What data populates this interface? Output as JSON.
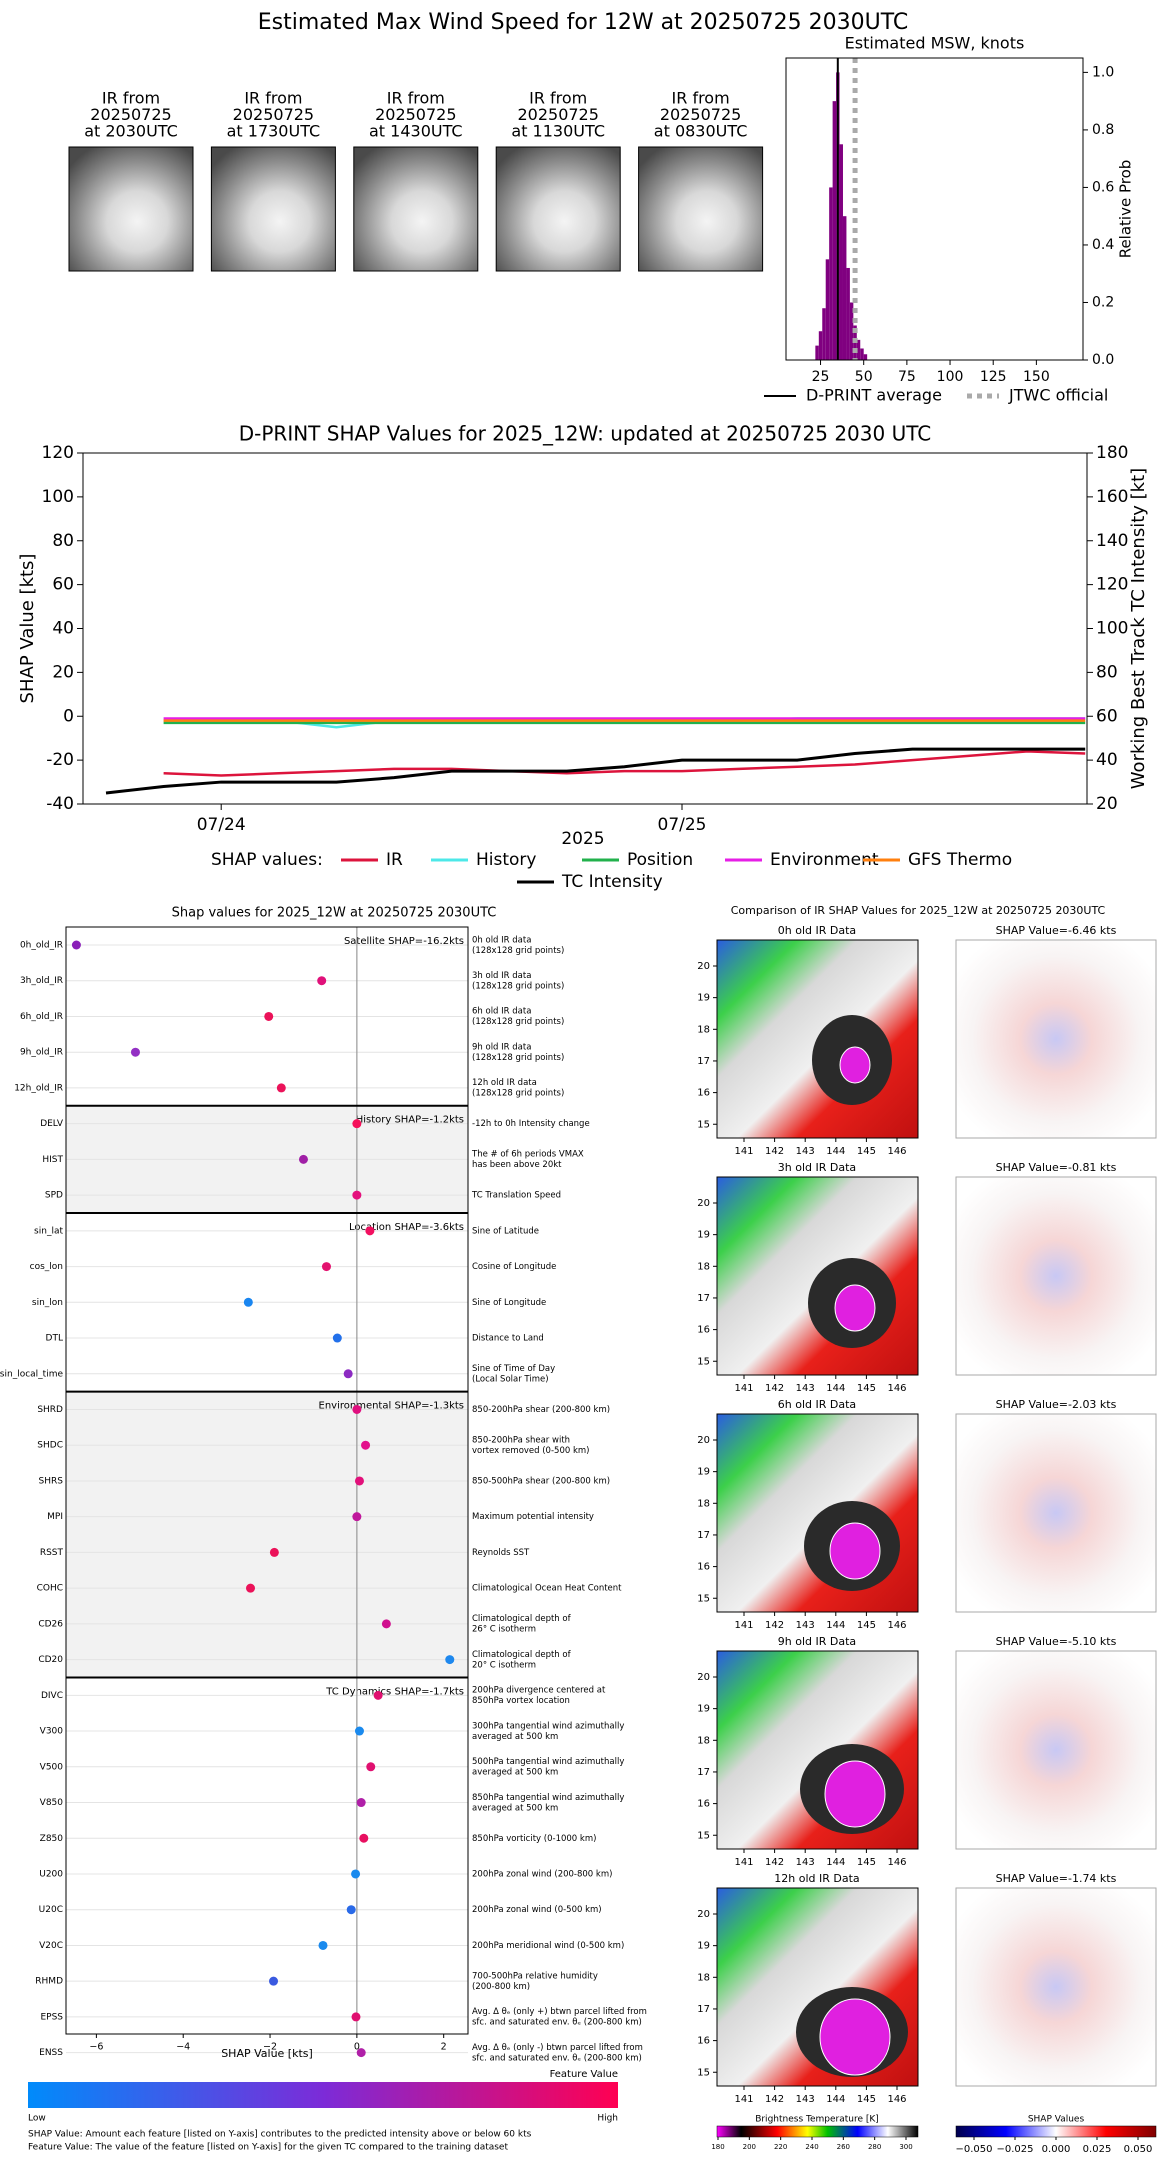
{
  "title": "Estimated Max Wind Speed for 12W at 20250725 2030UTC",
  "ir_thumbnails": [
    [
      "IR from",
      "20250725",
      "at 2030UTC"
    ],
    [
      "IR from",
      "20250725",
      "at 1730UTC"
    ],
    [
      "IR from",
      "20250725",
      "at 1430UTC"
    ],
    [
      "IR from",
      "20250725",
      "at 1130UTC"
    ],
    [
      "IR from",
      "20250725",
      "at 0830UTC"
    ]
  ],
  "chart_data": [
    {
      "type": "histogram",
      "title": "Estimated MSW, knots",
      "bins": [
        22,
        24,
        26,
        28,
        30,
        32,
        34,
        36,
        38,
        40,
        42,
        44,
        46,
        48,
        50,
        52
      ],
      "values": [
        0.05,
        0.1,
        0.18,
        0.35,
        0.6,
        0.9,
        1.0,
        0.75,
        0.5,
        0.32,
        0.2,
        0.12,
        0.07,
        0.04,
        0.02
      ],
      "color": "#800080",
      "xlim": [
        5,
        177
      ],
      "xticks": [
        25,
        50,
        75,
        100,
        125,
        150
      ],
      "ylim": [
        0,
        1.05
      ],
      "yticks": [
        {
          "value": 0,
          "label": "0.0"
        },
        {
          "value": 0.2,
          "label": "0.2"
        },
        {
          "value": 0.4,
          "label": "0.4"
        },
        {
          "value": 0.6,
          "label": "0.6"
        },
        {
          "value": 0.8,
          "label": "0.8"
        },
        {
          "value": 1,
          "label": "1.0"
        }
      ],
      "ylabel": "Relative Prob",
      "reference_lines": [
        {
          "name": "D-PRINT average",
          "value": 35,
          "color": "#000000",
          "style": "solid"
        },
        {
          "name": "JTWC official",
          "value": 45,
          "color": "#aaaaaa",
          "style": "dotted"
        }
      ]
    },
    {
      "type": "line",
      "title": "D-PRINT SHAP Values for 2025_12W: updated at 20250725 2030 UTC",
      "xlabel": "2025",
      "ylabel": "SHAP Value [kts]",
      "y2label": "Working Best Track TC Intensity [kt]",
      "categories": [
        null,
        null,
        "07/24",
        null,
        null,
        null,
        null,
        null,
        null,
        null,
        "07/25",
        null,
        null,
        null,
        null,
        null,
        null,
        null
      ],
      "ylim": [
        -40,
        120
      ],
      "yticks": [
        -40,
        -20,
        0,
        20,
        40,
        60,
        80,
        100,
        120
      ],
      "y2lim": [
        20,
        180
      ],
      "y2ticks": [
        20,
        40,
        60,
        80,
        100,
        120,
        140,
        160,
        180
      ],
      "legend_title": "SHAP values:",
      "series": [
        {
          "name": "IR",
          "color": "#dc143c",
          "values": [
            null,
            -26,
            -27,
            -26,
            -25,
            -24,
            -24,
            -25,
            -26,
            -25,
            -25,
            -24,
            -23,
            -22,
            -20,
            -18,
            -16,
            -17
          ]
        },
        {
          "name": "History",
          "color": "#4de8e8",
          "values": [
            null,
            -2,
            -2,
            -2,
            -5,
            -2,
            -2,
            -2,
            -2,
            -2,
            -2,
            -2,
            -1,
            -1,
            -1,
            -1,
            -1,
            -1
          ]
        },
        {
          "name": "Position",
          "color": "#22b14c",
          "values": [
            null,
            -3,
            -3,
            -3,
            -3,
            -3,
            -3,
            -3,
            -3,
            -3,
            -3,
            -3,
            -3,
            -3,
            -3,
            -3,
            -3,
            -3
          ]
        },
        {
          "name": "Environment",
          "color": "#e61ee6",
          "values": [
            null,
            -1,
            -1,
            -1,
            -1,
            -1,
            -1,
            -1,
            -1,
            -1,
            -1,
            -1,
            -1,
            -1,
            -1,
            -1,
            -1,
            -1
          ]
        },
        {
          "name": "GFS Thermo",
          "color": "#ff7f0e",
          "values": [
            null,
            -2,
            -2,
            -2,
            -2,
            -2,
            -2,
            -2,
            -2,
            -2,
            -2,
            -2,
            -2,
            -2,
            -2,
            -2,
            -2,
            -2
          ]
        },
        {
          "name": "TC Intensity",
          "color": "#000000",
          "axis": "y2",
          "values": [
            25,
            28,
            30,
            30,
            30,
            32,
            35,
            35,
            35,
            37,
            40,
            40,
            40,
            43,
            45,
            45,
            45,
            45
          ]
        }
      ]
    },
    {
      "type": "dot",
      "title": "Shap values for 2025_12W at 20250725 2030UTC",
      "xlabel": "SHAP Value [kts]",
      "xlim": [
        -6.7,
        2.56
      ],
      "xticks": [
        {
          "value": -6,
          "label": "−6"
        },
        {
          "value": -4,
          "label": "−4"
        },
        {
          "value": -2,
          "label": "−2"
        },
        0,
        2
      ],
      "groups": [
        {
          "label": "Satellite SHAP=-16.2kts",
          "features": [
            {
              "name": "0h_old_IR",
              "value": -6.46,
              "color": "#8a1fb8",
              "description": [
                "0h old IR data",
                "(128x128 grid points)"
              ]
            },
            {
              "name": "3h_old_IR",
              "value": -0.81,
              "color": "#e0117a",
              "description": [
                "3h old IR data",
                "(128x128 grid points)"
              ]
            },
            {
              "name": "6h_old_IR",
              "value": -2.03,
              "color": "#eb1259",
              "description": [
                "6h old IR data",
                "(128x128 grid points)"
              ]
            },
            {
              "name": "9h_old_IR",
              "value": -5.1,
              "color": "#9330c4",
              "description": [
                "9h old IR data",
                "(128x128 grid points)"
              ]
            },
            {
              "name": "12h_old_IR",
              "value": -1.74,
              "color": "#eb1259",
              "description": [
                "12h old IR data",
                "(128x128 grid points)"
              ]
            }
          ]
        },
        {
          "label": "History SHAP=-1.2kts",
          "features": [
            {
              "name": "DELV",
              "value": 0.0,
              "color": "#f5105a",
              "description": [
                "-12h to 0h Intensity change"
              ]
            },
            {
              "name": "HIST",
              "value": -1.23,
              "color": "#a01fa6",
              "description": [
                "The # of 6h periods VMAX",
                "has been above 20kt"
              ]
            },
            {
              "name": "SPD",
              "value": 0.0,
              "color": "#e4107c",
              "description": [
                "TC Translation Speed"
              ]
            }
          ]
        },
        {
          "label": "Location SHAP=-3.6kts",
          "features": [
            {
              "name": "sin_lat",
              "value": 0.3,
              "color": "#f21060",
              "description": [
                "Sine of Latitude"
              ]
            },
            {
              "name": "cos_lon",
              "value": -0.7,
              "color": "#e3136f",
              "description": [
                "Cosine of Longitude"
              ]
            },
            {
              "name": "sin_lon",
              "value": -2.5,
              "color": "#1a86f0",
              "description": [
                "Sine of Longitude"
              ]
            },
            {
              "name": "DTL",
              "value": -0.45,
              "color": "#2270ea",
              "description": [
                "Distance to Land"
              ]
            },
            {
              "name": "sin_local_time",
              "value": -0.2,
              "color": "#8c2ac2",
              "description": [
                "Sine of Time of Day",
                "(Local Solar Time)"
              ]
            }
          ]
        },
        {
          "label": "Environmental SHAP=-1.3kts",
          "features": [
            {
              "name": "SHRD",
              "value": 0.0,
              "color": "#e0107f",
              "description": [
                "850-200hPa shear (200-800 km)"
              ]
            },
            {
              "name": "SHDC",
              "value": 0.2,
              "color": "#e3108c",
              "description": [
                "850-200hPa shear with",
                "vortex removed (0-500 km)"
              ]
            },
            {
              "name": "SHRS",
              "value": 0.06,
              "color": "#e2107a",
              "description": [
                "850-500hPa shear (200-800 km)"
              ]
            },
            {
              "name": "MPI",
              "value": 0.0,
              "color": "#c0189c",
              "description": [
                "Maximum potential intensity"
              ]
            },
            {
              "name": "RSST",
              "value": -1.9,
              "color": "#eb1259",
              "description": [
                "Reynolds SST"
              ]
            },
            {
              "name": "COHC",
              "value": -2.45,
              "color": "#eb1259",
              "description": [
                "Climatological Ocean Heat Content"
              ]
            },
            {
              "name": "CD26",
              "value": 0.68,
              "color": "#d0108f",
              "description": [
                "Climatological depth of",
                "26° C isotherm"
              ]
            },
            {
              "name": "CD20",
              "value": 2.14,
              "color": "#1e88ee",
              "description": [
                "Climatological depth of",
                "20° C isotherm"
              ]
            }
          ]
        },
        {
          "label": "TC Dynamics SHAP=-1.7kts",
          "features": [
            {
              "name": "DIVC",
              "value": 0.49,
              "color": "#e01070",
              "description": [
                "200hPa divergence centered at",
                "850hPa vortex location"
              ]
            },
            {
              "name": "V300",
              "value": 0.06,
              "color": "#1a8aee",
              "description": [
                "300hPa tangential wind azimuthally",
                "averaged at 500 km"
              ]
            },
            {
              "name": "V500",
              "value": 0.32,
              "color": "#e01070",
              "description": [
                "500hPa tangential wind azimuthally",
                "averaged at 500 km"
              ]
            },
            {
              "name": "V850",
              "value": 0.1,
              "color": "#b020a8",
              "description": [
                "850hPa tangential wind azimuthally",
                "averaged at 500 km"
              ]
            },
            {
              "name": "Z850",
              "value": 0.16,
              "color": "#e81060",
              "description": [
                "850hPa vorticity (0-1000 km)"
              ]
            },
            {
              "name": "U200",
              "value": -0.03,
              "color": "#1a8aee",
              "description": [
                "200hPa zonal wind (200-800 km)"
              ]
            },
            {
              "name": "U20C",
              "value": -0.13,
              "color": "#2a6ae8",
              "description": [
                "200hPa zonal wind (0-500 km)"
              ]
            },
            {
              "name": "V20C",
              "value": -0.78,
              "color": "#1a8aee",
              "description": [
                "200hPa meridional wind (0-500 km)"
              ]
            },
            {
              "name": "RHMD",
              "value": -1.92,
              "color": "#3a5ae0",
              "description": [
                "700-500hPa relative humidity",
                "(200-800 km)"
              ]
            },
            {
              "name": "EPSS",
              "value": -0.02,
              "color": "#e01070",
              "description": [
                "Avg. Δ θₑ (only +) btwn parcel lifted from",
                "sfc. and saturated env. θₑ (200-800 km)"
              ]
            },
            {
              "name": "ENSS",
              "value": 0.1,
              "color": "#b020a8",
              "description": [
                "Avg. Δ θₑ (only -) btwn parcel lifted from",
                "sfc. and saturated env. θₑ (200-800 km)"
              ]
            }
          ]
        }
      ],
      "colorbar": {
        "title": "Feature Value",
        "low": "Low",
        "high": "High",
        "colors": [
          "#008bfb",
          "#7c2bd8",
          "#ff0052"
        ]
      },
      "notes": [
        "SHAP Value: Amount each feature [listed on Y-axis] contributes to the predicted intensity above or below 60 kts",
        "Feature Value: The value of the feature [listed on Y-axis] for the given TC compared to the training dataset"
      ]
    }
  ],
  "ir_comparison": {
    "title": "Comparison of IR SHAP Values for 2025_12W at 20250725 2030UTC",
    "rows": [
      {
        "ir_title": "0h old IR Data",
        "shap_title": "SHAP Value=-6.46 kts"
      },
      {
        "ir_title": "3h old IR Data",
        "shap_title": "SHAP Value=-0.81 kts"
      },
      {
        "ir_title": "6h old IR Data",
        "shap_title": "SHAP Value=-2.03 kts"
      },
      {
        "ir_title": "9h old IR Data",
        "shap_title": "SHAP Value=-5.10 kts"
      },
      {
        "ir_title": "12h old IR Data",
        "shap_title": "SHAP Value=-1.74 kts"
      }
    ],
    "lat_ticks": [
      15,
      16,
      17,
      18,
      19,
      20
    ],
    "lon_ticks": [
      141,
      142,
      143,
      144,
      145,
      146
    ],
    "bt_colorbar": {
      "label": "Brightness Temperature [K]",
      "ticks": [
        180,
        200,
        220,
        240,
        260,
        280,
        300
      ]
    },
    "shap_colorbar": {
      "label": "SHAP Values",
      "ticks": [
        {
          "value": -0.05,
          "label": "−0.050"
        },
        {
          "value": -0.025,
          "label": "−0.025"
        },
        {
          "value": 0,
          "label": "0.000"
        },
        {
          "value": 0.025,
          "label": "0.025"
        },
        {
          "value": 0.05,
          "label": "0.050"
        }
      ]
    }
  }
}
